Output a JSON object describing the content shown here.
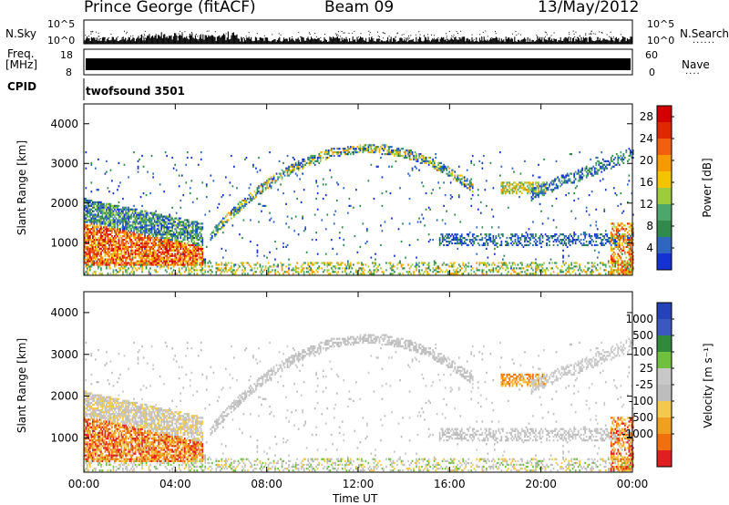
{
  "header": {
    "station": "Prince George (fitACF)",
    "beam": "Beam 09",
    "date": "13/May/2012"
  },
  "colors": {
    "power": [
      "#1432d2",
      "#2e66c0",
      "#2f8a4c",
      "#4ca86a",
      "#9ccc3c",
      "#f4c400",
      "#f59a00",
      "#f06010",
      "#e02800",
      "#d20000"
    ],
    "velocity": [
      "#2542b8",
      "#3a58bf",
      "#2f8a3c",
      "#70c040",
      "#c8c8c8",
      "#bdbdbd",
      "#f4c84c",
      "#f0a020",
      "#f07010",
      "#e02020"
    ]
  },
  "top_panels": {
    "nsky_label": "N.Sky",
    "nsearch_label": "N.Search",
    "nsky_ticks": [
      "10^5",
      "10^0"
    ],
    "nsearch_ticks": [
      "10^5",
      "10^0"
    ],
    "freq_label_1": "Freq.",
    "freq_label_2": "[MHz]",
    "freq_ticks": [
      "18",
      "8"
    ],
    "nave_label": "Nave",
    "nave_ticks": [
      "60",
      "0"
    ],
    "cpid_label": "CPID",
    "cpid_value": "twofsound 3501"
  },
  "chart_data": [
    {
      "type": "heatmap",
      "quantity": "power",
      "ylabel": "Slant Range [km]",
      "xlabel": "Time UT",
      "x_ticks": [
        "00:00",
        "04:00",
        "08:00",
        "12:00",
        "16:00",
        "20:00",
        "00:00"
      ],
      "xlim": [
        0,
        24
      ],
      "ylim": [
        180,
        4500
      ],
      "y_ticks": [
        1000,
        2000,
        3000,
        4000
      ],
      "colorbar": {
        "label": "Power [dB]",
        "ticks": [
          4,
          8,
          12,
          16,
          20,
          24,
          28
        ],
        "range": [
          0,
          30
        ]
      }
    },
    {
      "type": "heatmap",
      "quantity": "velocity",
      "ylabel": "Slant Range [km]",
      "xlabel": "Time UT",
      "x_ticks": [
        "00:00",
        "04:00",
        "08:00",
        "12:00",
        "16:00",
        "20:00",
        "00:00"
      ],
      "xlim": [
        0,
        24
      ],
      "ylim": [
        180,
        4500
      ],
      "y_ticks": [
        1000,
        2000,
        3000,
        4000
      ],
      "colorbar": {
        "label": "Velocity [m s⁻¹]",
        "ticks": [
          1000,
          500,
          100,
          25,
          -25,
          -100,
          -500,
          -1000
        ]
      }
    }
  ],
  "axis_labels": {
    "ylabel": "Slant Range [km]",
    "xlabel": "Time UT",
    "power_cbar_label": "Power [dB]",
    "velocity_cbar_label": "Velocity [m s⁻¹]"
  }
}
